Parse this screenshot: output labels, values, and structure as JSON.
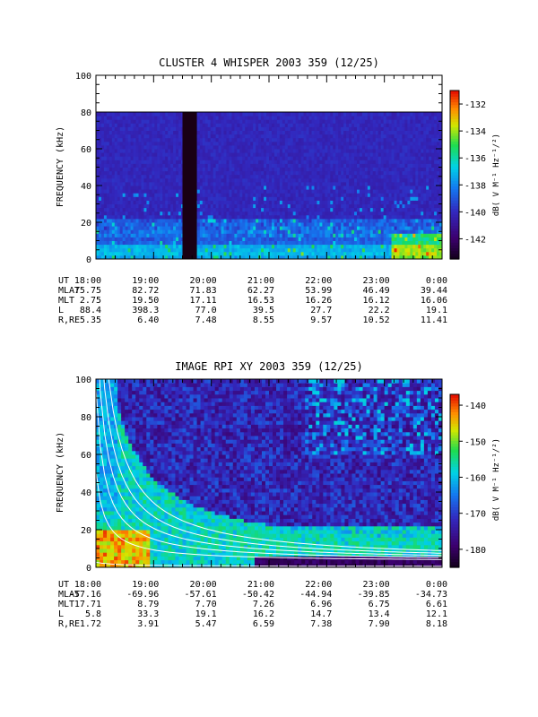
{
  "chart_data": [
    {
      "type": "heatmap",
      "title": "CLUSTER 4 WHISPER 2003 359 (12/25)",
      "ylabel": "FREQUENCY (kHz)",
      "ylim": [
        0,
        100
      ],
      "yticks": [
        "0",
        "20",
        "40",
        "60",
        "80",
        "100"
      ],
      "xticks": [
        "18:00",
        "19:00",
        "20:00",
        "21:00",
        "22:00",
        "23:00",
        "0:00"
      ],
      "colorbar": {
        "label": "dB( V M⁻¹ Hz⁻¹/²)",
        "range": [
          -143.5,
          -131
        ],
        "ticks": [
          "-132",
          "-134",
          "-136",
          "-138",
          "-140",
          "-142"
        ]
      },
      "data_gap": [
        "19:30",
        "19:45"
      ],
      "frequency_ceiling_khz": 80,
      "ephemeris": [
        {
          "label": "UT",
          "values": [
            "18:00",
            "19:00",
            "20:00",
            "21:00",
            "22:00",
            "23:00",
            "0:00"
          ]
        },
        {
          "label": "MLAT",
          "values": [
            "75.75",
            "82.72",
            "71.83",
            "62.27",
            "53.99",
            "46.49",
            "39.44"
          ]
        },
        {
          "label": "MLT",
          "values": [
            "2.75",
            "19.50",
            "17.11",
            "16.53",
            "16.26",
            "16.12",
            "16.06"
          ]
        },
        {
          "label": "L",
          "values": [
            "88.4",
            "398.3",
            "77.0",
            "39.5",
            "27.7",
            "22.2",
            "19.1"
          ]
        },
        {
          "label": "R,RE",
          "values": [
            "5.35",
            "6.40",
            "7.48",
            "8.55",
            "9.57",
            "10.52",
            "11.41"
          ]
        }
      ]
    },
    {
      "type": "heatmap",
      "title": "IMAGE RPI XY 2003 359 (12/25)",
      "ylabel": "FREQUENCY (kHz)",
      "ylim": [
        0,
        100
      ],
      "yticks": [
        "0",
        "20",
        "40",
        "60",
        "80",
        "100"
      ],
      "xticks": [
        "18:00",
        "19:00",
        "20:00",
        "21:00",
        "22:00",
        "23:00",
        "0:00"
      ],
      "colorbar": {
        "label": "dB( V M⁻¹ Hz⁻¹/²)",
        "range": [
          -185,
          -137
        ],
        "ticks": [
          "-140",
          "-150",
          "-160",
          "-170",
          "-180"
        ]
      },
      "ephemeris": [
        {
          "label": "UT",
          "values": [
            "18:00",
            "19:00",
            "20:00",
            "21:00",
            "22:00",
            "23:00",
            "0:00"
          ]
        },
        {
          "label": "MLAT",
          "values": [
            "-57.16",
            "-69.96",
            "-57.61",
            "-50.42",
            "-44.94",
            "-39.85",
            "-34.73"
          ]
        },
        {
          "label": "MLT",
          "values": [
            "17.71",
            "8.79",
            "7.70",
            "7.26",
            "6.96",
            "6.75",
            "6.61"
          ]
        },
        {
          "label": "L",
          "values": [
            "5.8",
            "33.3",
            "19.1",
            "16.2",
            "14.7",
            "13.4",
            "12.1"
          ]
        },
        {
          "label": "R,RE",
          "values": [
            "1.72",
            "3.91",
            "5.47",
            "6.59",
            "7.38",
            "7.90",
            "8.18"
          ]
        }
      ]
    }
  ]
}
